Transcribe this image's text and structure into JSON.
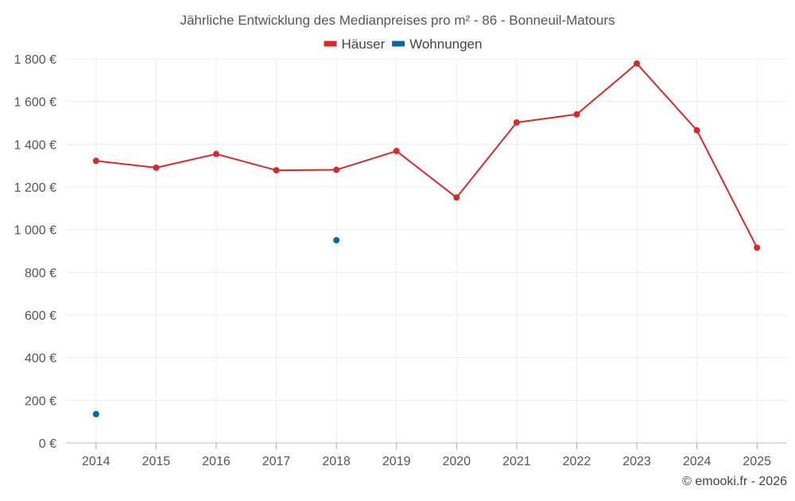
{
  "chart_data": {
    "type": "line",
    "title": "Jährliche Entwicklung des Medianpreises pro m² - 86 - Bonneuil-Matours",
    "xlabel": "",
    "ylabel": "",
    "categories": [
      "2014",
      "2015",
      "2016",
      "2017",
      "2018",
      "2019",
      "2020",
      "2021",
      "2022",
      "2023",
      "2024",
      "2025"
    ],
    "ylim": [
      0,
      1800
    ],
    "yticks": [
      0,
      200,
      400,
      600,
      800,
      1000,
      1200,
      1400,
      1600,
      1800
    ],
    "ytick_labels": [
      "0 €",
      "200 €",
      "400 €",
      "600 €",
      "800 €",
      "1 000 €",
      "1 200 €",
      "1 400 €",
      "1 600 €",
      "1 800 €"
    ],
    "legend_position": "top-center",
    "grid": true,
    "series": [
      {
        "name": "Häuser",
        "color": "#d42a2a",
        "values": [
          1322,
          1290,
          1354,
          1278,
          1280,
          1368,
          1150,
          1502,
          1540,
          1778,
          1465,
          915
        ]
      },
      {
        "name": "Wohnungen",
        "color": "#0a66a0",
        "values": [
          135,
          null,
          null,
          null,
          950,
          null,
          null,
          null,
          null,
          null,
          null,
          null
        ]
      }
    ]
  },
  "credit": "© emooki.fr - 2026"
}
